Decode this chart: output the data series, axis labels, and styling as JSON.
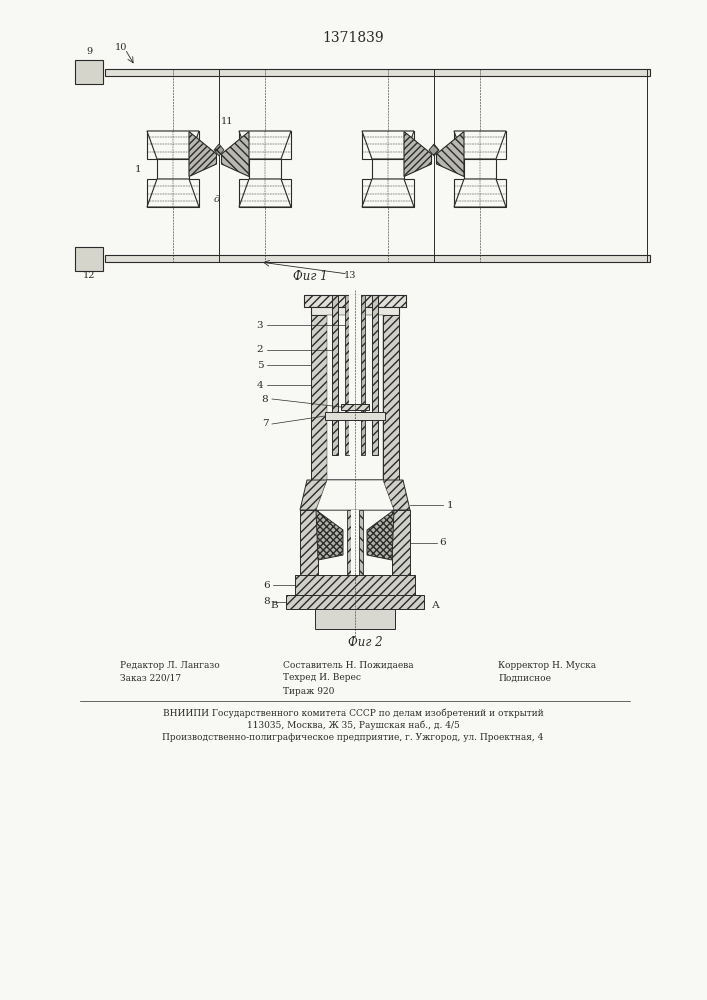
{
  "title": "1371839",
  "fig1_caption": "Фиг 1",
  "fig2_caption": "Фиг 2",
  "footer_vnii": "ВНИИПИ Государственного комитета СССР по делам изобретений и открытий",
  "footer_addr1": "113035, Москва, Ж 35, Раушская наб., д. 4/5",
  "footer_addr2": "Производственно-полиграфическое предприятие, г. Ужгород, ул. Проектная, 4",
  "bg_color": "#f8f8f5",
  "line_color": "#2a2a2a"
}
